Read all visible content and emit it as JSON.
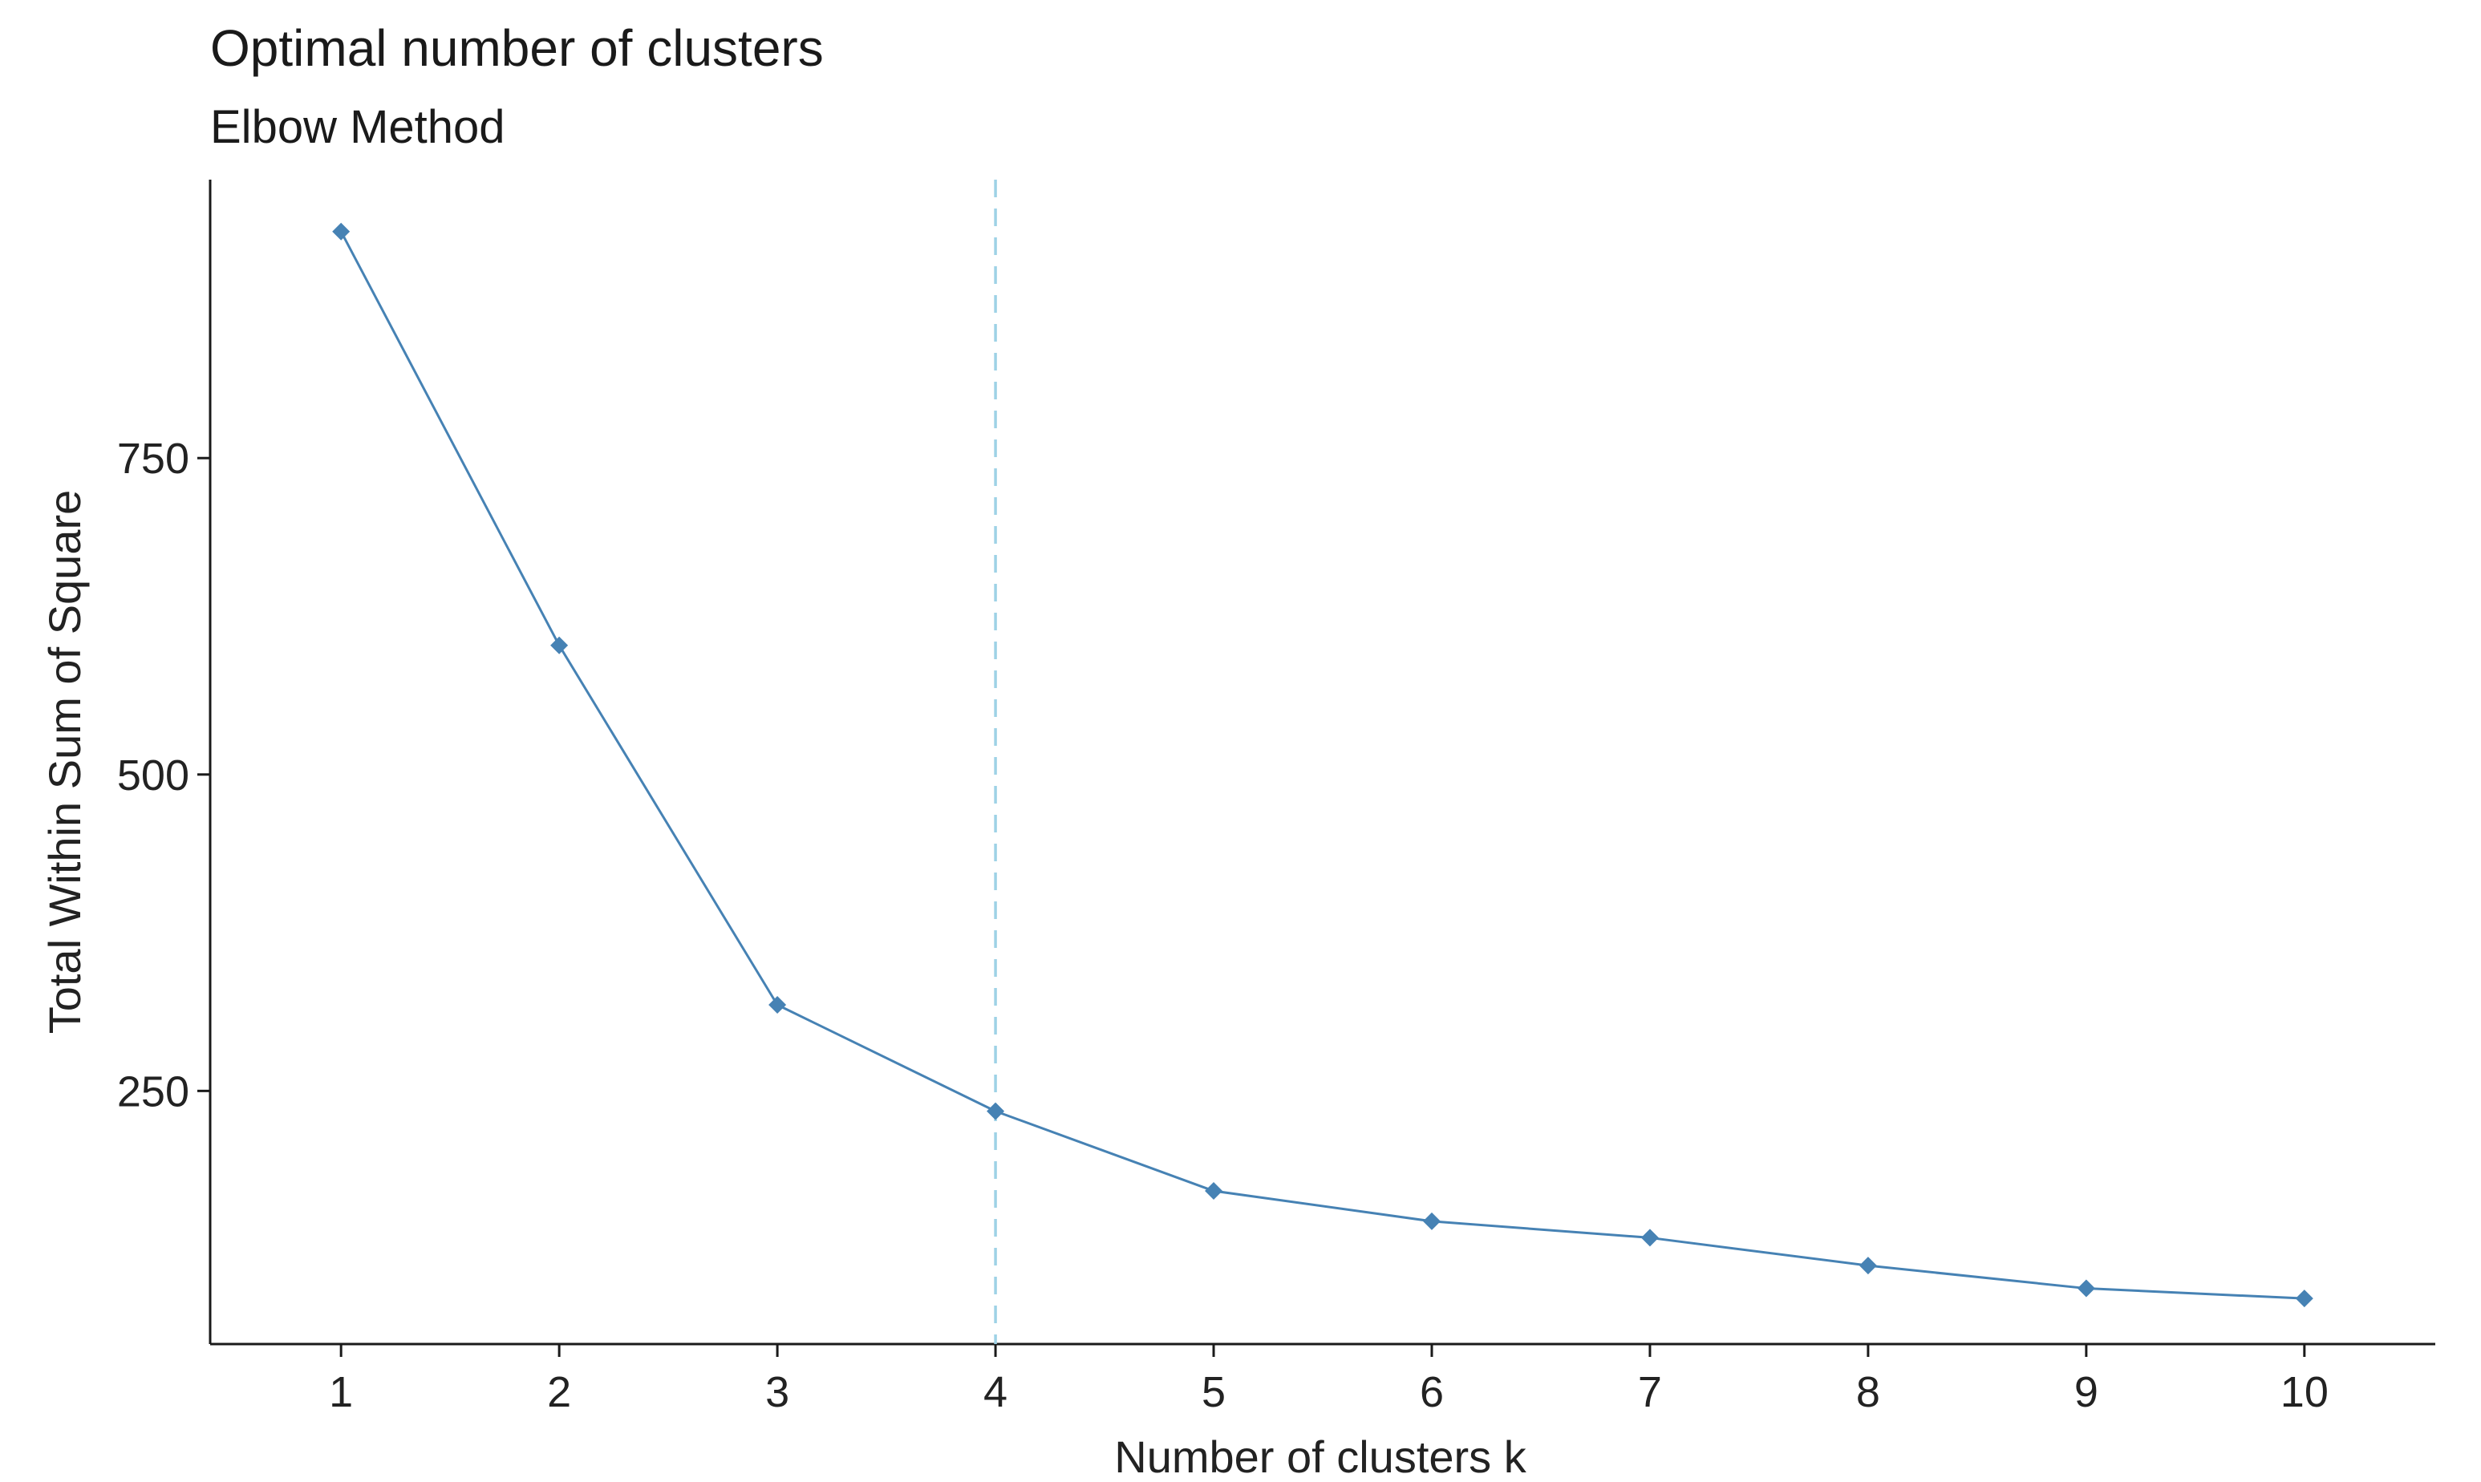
{
  "chart_data": {
    "type": "line",
    "title": "Optimal number of clusters",
    "subtitle": "Elbow Method",
    "xlabel": "Number of clusters k",
    "ylabel": "Total Within Sum of Square",
    "x": [
      1,
      2,
      3,
      4,
      5,
      6,
      7,
      8,
      9,
      10
    ],
    "x_tick_labels": [
      "1",
      "2",
      "3",
      "4",
      "5",
      "6",
      "7",
      "8",
      "9",
      "10"
    ],
    "y_ticks": [
      250,
      500,
      750
    ],
    "y_tick_labels": [
      "250",
      "500",
      "750"
    ],
    "series": [
      {
        "values": [
          929,
          602,
          318,
          234,
          171,
          147,
          134,
          112,
          94,
          86
        ]
      }
    ],
    "xlim": [
      0.4,
      10.6
    ],
    "ylim": [
      50,
      970
    ],
    "vline": {
      "x": 4,
      "style": "dashed"
    },
    "colors": {
      "series": "#4682B4",
      "vline": "#9ED2E6",
      "axis": "#1a1a1a"
    },
    "grid": false,
    "legend": "none"
  }
}
